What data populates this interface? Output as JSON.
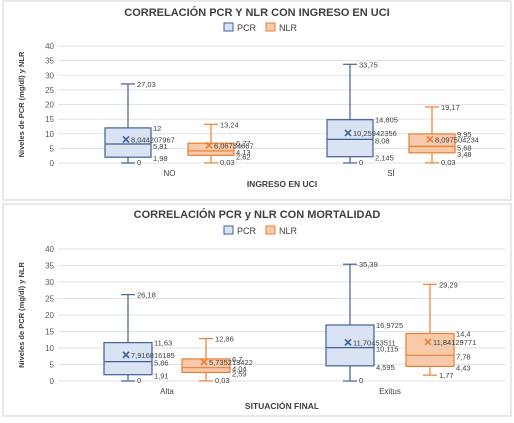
{
  "chart_data": [
    {
      "type": "boxplot",
      "title": "CORRELACIÓN PCR Y NLR CON INGRESO EN UCI",
      "xlabel": "INGRESO EN UCI",
      "ylabel": "Niveles de PCR (mg/dl) y NLR",
      "ylim": [
        0,
        40
      ],
      "yticks": [
        "0",
        "5",
        "10",
        "15",
        "20",
        "25",
        "30",
        "35",
        "40"
      ],
      "grid": true,
      "legend_position": "top",
      "categories": [
        "NO",
        "SÍ"
      ],
      "series": [
        {
          "name": "PCR",
          "boxes": [
            {
              "min": 0,
              "q1": 1.98,
              "median": 6.5,
              "q3": 12,
              "max": 27.03,
              "mean": 8.044207967,
              "labels": {
                "max": "27,03",
                "q3": "12",
                "mean": "8,044207967",
                "min": "0",
                "q1": "1,98"
              }
            },
            {
              "min": 0,
              "q1": 2.145,
              "median": 8.08,
              "q3": 14.805,
              "max": 33.75,
              "mean": 10.25942356,
              "labels": {
                "max": "33,75",
                "q3": "14,805",
                "mean": "10,25942356",
                "median": "8,08",
                "min": "0",
                "q1": "2,145"
              }
            }
          ]
        },
        {
          "name": "NLR",
          "boxes": [
            {
              "min": 0.03,
              "q1": 2.62,
              "median": 4.13,
              "q3": 6.77,
              "max": 13.24,
              "mean": 6.06734667,
              "labels": {
                "max": "13,24",
                "q3": "6,77",
                "mean": "6,06734667",
                "median": "4,13",
                "min": "0,03",
                "q1": "2,62"
              }
            },
            {
              "min": 0.03,
              "q1": 3.48,
              "median": 5.68,
              "q3": 9.95,
              "max": 19.17,
              "mean": 8.097504234,
              "labels": {
                "max": "19,17",
                "q3": "9,95",
                "mean": "8,097504234",
                "median": "5,68",
                "min": "0,03",
                "q1": "3,48"
              }
            }
          ]
        }
      ],
      "extra_labels": [
        "5,81"
      ],
      "colors": {
        "pcr_fill": "#d9e3f3",
        "pcr_stroke": "#3f5f96",
        "nlr_fill": "#f6caab",
        "nlr_stroke": "#ec7d31"
      }
    },
    {
      "type": "boxplot",
      "title": "CORRELACIÓN PCR y NLR CON MORTALIDAD",
      "xlabel": "SITUACIÓN FINAL",
      "ylabel": "Niveles de PCR (mg/dl) y NLR",
      "ylim": [
        0,
        40
      ],
      "yticks": [
        "0",
        "5",
        "10",
        "15",
        "20",
        "25",
        "30",
        "35",
        "40"
      ],
      "grid": true,
      "legend_position": "top",
      "categories": [
        "Alta",
        "Exitus"
      ],
      "series": [
        {
          "name": "PCR",
          "boxes": [
            {
              "min": 0,
              "q1": 1.91,
              "median": 5.86,
              "q3": 11.63,
              "max": 26.18,
              "mean": 7.916816185,
              "labels": {
                "max": "26,18",
                "q3": "11,63",
                "mean": "7,916816185",
                "median": "5,86",
                "min": "0",
                "q1": "1,91"
              }
            },
            {
              "min": 0,
              "q1": 4.595,
              "median": 10.115,
              "q3": 16.9725,
              "max": 35.39,
              "mean": 11.70453511,
              "labels": {
                "max": "35,39",
                "q3": "16,9725",
                "mean": "11,70453511",
                "median": "10,115",
                "min": "0",
                "q1": "4,595"
              }
            }
          ]
        },
        {
          "name": "NLR",
          "boxes": [
            {
              "min": 0.03,
              "q1": 2.59,
              "median": 4.04,
              "q3": 6.7,
              "max": 12.86,
              "mean": 5.735213422,
              "labels": {
                "max": "12,86",
                "q3": "6,7",
                "mean": "5,735213422",
                "median": "4,04",
                "min": "0,03",
                "q1": "2,59"
              }
            },
            {
              "min": 1.77,
              "q1": 4.43,
              "median": 7.78,
              "q3": 14.4,
              "max": 29.29,
              "mean": 11.84129771,
              "labels": {
                "max": "29,29",
                "q3": "14,4",
                "mean": "11,84129771",
                "median": "7,78",
                "min": "1,77",
                "q1": "4,43"
              }
            }
          ]
        }
      ],
      "extra_labels": [],
      "colors": {
        "pcr_fill": "#d9e3f3",
        "pcr_stroke": "#3f5f96",
        "nlr_fill": "#f6caab",
        "nlr_stroke": "#ec7d31"
      }
    }
  ]
}
